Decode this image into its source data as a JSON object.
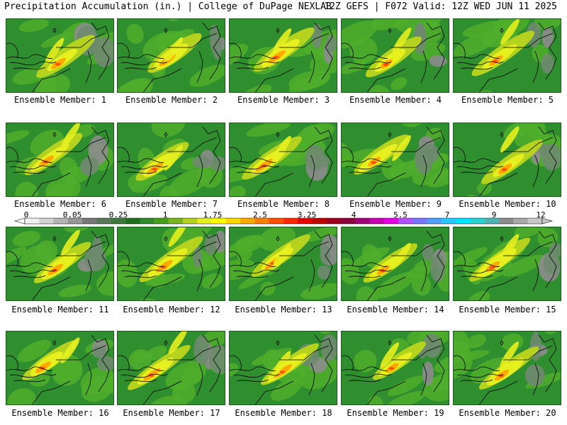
{
  "header": {
    "left": "Precipitation Accumulation (in.) | College of DuPage NEXLAB",
    "right": "12Z GEFS | F072 Valid: 12Z WED JUN 11 2025"
  },
  "panels": [
    {
      "label": "Ensemble Member: 1"
    },
    {
      "label": "Ensemble Member: 2"
    },
    {
      "label": "Ensemble Member: 3"
    },
    {
      "label": "Ensemble Member: 4"
    },
    {
      "label": "Ensemble Member: 5"
    },
    {
      "label": "Ensemble Member: 6"
    },
    {
      "label": "Ensemble Member: 7"
    },
    {
      "label": "Ensemble Member: 8"
    },
    {
      "label": "Ensemble Member: 9"
    },
    {
      "label": "Ensemble Member: 10"
    },
    {
      "label": "Ensemble Member: 11"
    },
    {
      "label": "Ensemble Member: 12"
    },
    {
      "label": "Ensemble Member: 13"
    },
    {
      "label": "Ensemble Member: 14"
    },
    {
      "label": "Ensemble Member: 15"
    },
    {
      "label": "Ensemble Member: 16"
    },
    {
      "label": "Ensemble Member: 17"
    },
    {
      "label": "Ensemble Member: 18"
    },
    {
      "label": "Ensemble Member: 19"
    },
    {
      "label": "Ensemble Member: 20"
    }
  ],
  "colorbar": {
    "labels": [
      "0",
      "0.05",
      "0.25",
      "1",
      "1.75",
      "2.5",
      "3.25",
      "4",
      "5.5",
      "7",
      "9",
      "12"
    ],
    "colors": [
      "#f0f0f0",
      "#d2d2d2",
      "#b4b4b4",
      "#969696",
      "#787878",
      "#5a785a",
      "#3c783c",
      "#1e6e1e",
      "#2e8b2e",
      "#46a01e",
      "#78b41e",
      "#b4d21e",
      "#e6f01e",
      "#ffff00",
      "#ffd700",
      "#ffaa00",
      "#ff8000",
      "#ff5000",
      "#ff2800",
      "#e60000",
      "#be0000",
      "#a0001e",
      "#8c003c",
      "#a00078",
      "#c800b4",
      "#e600e6",
      "#b450ff",
      "#7878ff",
      "#50a0ff",
      "#28c8ff",
      "#00e6ff",
      "#28d2d2",
      "#50b4b4",
      "#8c8c8c",
      "#aaaaaa",
      "#c8c8c8"
    ]
  }
}
